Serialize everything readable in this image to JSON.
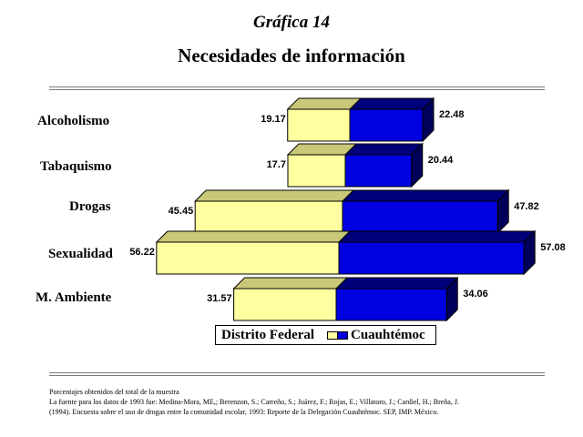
{
  "header": {
    "subtitle": "Gráfica 14",
    "title": "Necesidades de información"
  },
  "colors": {
    "distrito_federal": "#ffffa0",
    "cuauhtemoc": "#0000e0",
    "background": "#ffffff"
  },
  "chart_data": {
    "type": "bar",
    "orientation": "horizontal",
    "style": "3d-diverging",
    "categories": [
      "Alcoholismo",
      "Tabaquismo",
      "Drogas",
      "Sexualidad",
      "M. Ambiente"
    ],
    "series": [
      {
        "name": "Distrito Federal",
        "values": [
          19.17,
          17.7,
          45.45,
          56.22,
          31.57
        ],
        "color": "#ffffa0",
        "direction": "left"
      },
      {
        "name": "Cuauhtémoc",
        "values": [
          22.48,
          20.44,
          47.82,
          57.08,
          34.06
        ],
        "color": "#0000e0",
        "direction": "right"
      }
    ],
    "value_labels_left": [
      "19.17",
      "17.7",
      "45.45",
      "56.22",
      "31.57"
    ],
    "value_labels_right": [
      "22.48",
      "20.44",
      "47.82",
      "57.08",
      "34.06"
    ],
    "legend_position": "bottom",
    "grid": false
  },
  "notes": {
    "line1": "Porcentajes obtenidos del total de la muestra",
    "line2": "La fuente para los datos de 1993 fue: Medina-Mora, ME,; Berenzon, S.; Carreño, S.; Juárez, F.; Rojas, E.; Villatoro, J.; Cardiel, H.; Breña, J.",
    "line3": "(1994). Encuesta sobre el uso de drogas entre la comunidad escolar, 1993: Reporte de la Delegación Cuauhtémoc. SEP, IMP. México."
  }
}
